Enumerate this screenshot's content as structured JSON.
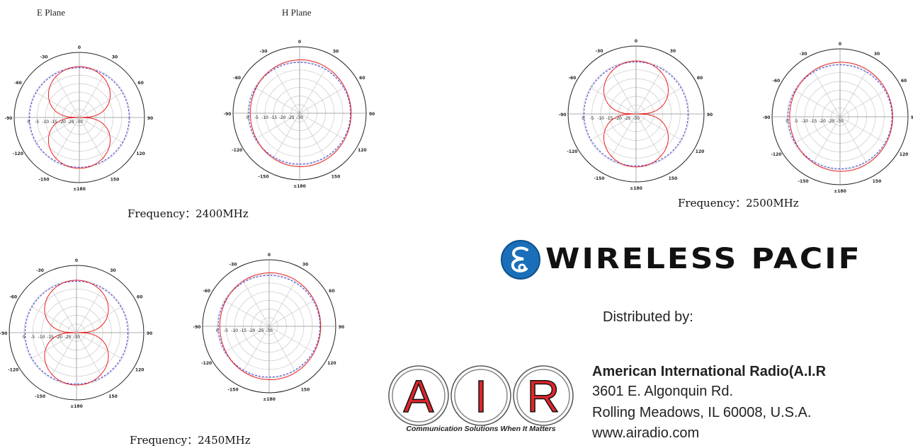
{
  "plane_labels": {
    "e_plane": "E Plane",
    "h_plane": "H Plane"
  },
  "frequencies": [
    {
      "label": "Frequency：",
      "value": "2400MHz"
    },
    {
      "label": "Frequency：",
      "value": "2450MHz"
    },
    {
      "label": "Frequency：",
      "value": "2500MHz"
    }
  ],
  "polar_plots": {
    "angle_labels": [
      "0",
      "30",
      "60",
      "90",
      "120",
      "150",
      "±180",
      "-150",
      "-120",
      "-90",
      "-60",
      "-30"
    ],
    "radial_labels": [
      "0",
      "-5",
      "-10",
      "-15",
      "-20",
      "-25",
      "-30"
    ],
    "colors": {
      "measured": "#e82020",
      "reference": "#3a3ad6",
      "grid": "#cfcfcf",
      "ring": "#222222"
    }
  },
  "brand": {
    "name": "WIRELESS PACIF",
    "icon": "wireless-pacific-logo-icon",
    "color": "#1a6fb8"
  },
  "distributor": {
    "intro": "Distributed by:",
    "logo_letters": [
      "A",
      "I",
      "R"
    ],
    "logo_color": "#e0262b",
    "tagline": "Communication Solutions When It Matters",
    "company": "American International Radio(A.I.R",
    "address_line1": "3601 E. Algonquin Rd.",
    "address_line2": "Rolling Meadows, IL 60008, U.S.A.",
    "website": "www.airadio.com"
  }
}
